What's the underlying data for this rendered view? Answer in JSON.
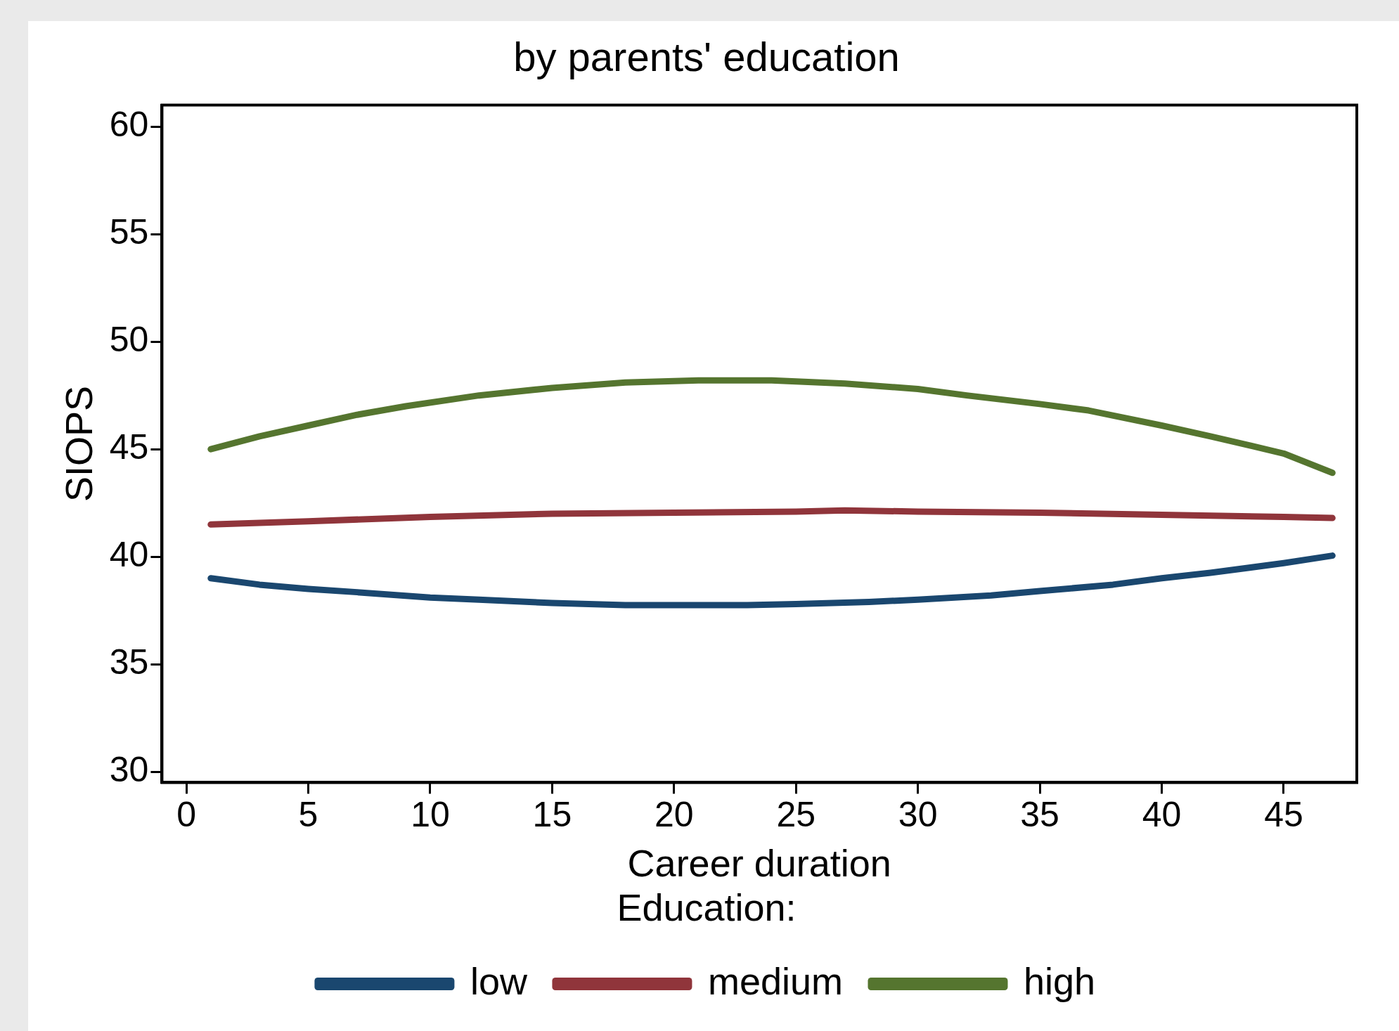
{
  "chart_data": {
    "type": "line",
    "title": "by parents' education",
    "xlabel": "Career duration",
    "ylabel": "SIOPS",
    "legend_title": "Education:",
    "legend": "bottom",
    "grid": false,
    "marker": "none",
    "line_style": "solid",
    "xlim": [
      -1,
      48
    ],
    "xticks": [
      0,
      5,
      10,
      15,
      20,
      25,
      30,
      35,
      40,
      45
    ],
    "ylim": [
      29.5,
      61
    ],
    "yticks": [
      30,
      35,
      40,
      45,
      50,
      55,
      60
    ],
    "series": [
      {
        "name": "low",
        "color": "#1a476f",
        "x": [
          1,
          3,
          5,
          7,
          10,
          12,
          15,
          18,
          20,
          23,
          25,
          28,
          30,
          33,
          35,
          38,
          40,
          42,
          45,
          47
        ],
        "values": [
          39.0,
          38.7,
          38.5,
          38.35,
          38.1,
          38.0,
          37.85,
          37.75,
          37.75,
          37.75,
          37.8,
          37.9,
          38.0,
          38.2,
          38.4,
          38.7,
          39.0,
          39.25,
          39.7,
          40.05
        ]
      },
      {
        "name": "medium",
        "color": "#90353b",
        "x": [
          1,
          5,
          10,
          15,
          20,
          25,
          27,
          30,
          35,
          40,
          45,
          47
        ],
        "values": [
          41.5,
          41.65,
          41.85,
          42.0,
          42.05,
          42.1,
          42.15,
          42.1,
          42.05,
          41.95,
          41.85,
          41.8
        ]
      },
      {
        "name": "high",
        "color": "#55752f",
        "x": [
          1,
          3,
          5,
          7,
          9,
          12,
          15,
          18,
          21,
          24,
          27,
          30,
          32,
          35,
          37,
          40,
          42,
          45,
          47
        ],
        "values": [
          45.0,
          45.6,
          46.1,
          46.6,
          47.0,
          47.5,
          47.85,
          48.1,
          48.2,
          48.2,
          48.05,
          47.8,
          47.5,
          47.1,
          46.8,
          46.1,
          45.6,
          44.8,
          43.9
        ]
      }
    ]
  }
}
